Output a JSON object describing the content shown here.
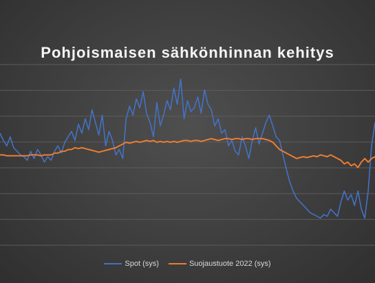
{
  "chart_data": {
    "type": "line",
    "title": "Pohjoismaisen sähkönhinnan kehitys",
    "xlabel": "",
    "ylabel": "",
    "grid": true,
    "legend_position": "bottom",
    "ylim": [
      0,
      100
    ],
    "x": [
      0,
      1,
      2,
      3,
      4,
      5,
      6,
      7,
      8,
      9,
      10,
      11,
      12,
      13,
      14,
      15,
      16,
      17,
      18,
      19,
      20,
      21,
      22,
      23,
      24,
      25,
      26,
      27,
      28,
      29,
      30,
      31,
      32,
      33,
      34,
      35,
      36,
      37,
      38,
      39,
      40,
      41,
      42,
      43,
      44,
      45,
      46,
      47,
      48,
      49,
      50,
      51,
      52,
      53,
      54,
      55,
      56,
      57,
      58,
      59,
      60,
      61,
      62,
      63,
      64,
      65,
      66,
      67,
      68,
      69,
      70,
      71,
      72,
      73,
      74,
      75,
      76,
      77,
      78,
      79,
      80,
      81,
      82,
      83,
      84,
      85,
      86,
      87,
      88,
      89,
      90,
      91,
      92,
      93,
      94,
      95,
      96,
      97,
      98,
      99,
      100,
      101,
      102,
      103,
      104,
      105,
      106,
      107,
      108,
      109,
      110
    ],
    "series": [
      {
        "name": "Spot (sys)",
        "color": "#4472c4",
        "values": [
          62,
          58,
          55,
          60,
          54,
          52,
          50,
          49,
          47,
          52,
          48,
          53,
          50,
          46,
          49,
          47,
          52,
          55,
          51,
          57,
          60,
          63,
          58,
          67,
          62,
          70,
          64,
          75,
          68,
          61,
          72,
          55,
          63,
          58,
          50,
          53,
          48,
          70,
          77,
          72,
          81,
          76,
          85,
          73,
          68,
          60,
          79,
          66,
          72,
          80,
          75,
          87,
          78,
          92,
          70,
          80,
          74,
          76,
          82,
          73,
          86,
          78,
          75,
          66,
          70,
          62,
          64,
          55,
          58,
          52,
          50,
          60,
          55,
          48,
          58,
          65,
          56,
          62,
          68,
          72,
          66,
          60,
          58,
          50,
          42,
          35,
          30,
          26,
          24,
          22,
          20,
          18,
          17,
          16,
          15,
          17,
          16,
          20,
          18,
          16,
          24,
          30,
          25,
          28,
          22,
          30,
          20,
          15,
          30,
          55,
          68
        ]
      },
      {
        "name": "Suojaustuote 2022 (sys)",
        "color": "#ed7d31",
        "values": [
          50,
          50,
          49.5,
          49.5,
          49.5,
          49.5,
          49.5,
          49.5,
          49.5,
          50,
          50,
          50,
          49.5,
          50,
          50,
          50,
          51,
          51,
          52,
          52,
          53,
          53,
          54,
          53.5,
          54,
          53.5,
          53,
          52.5,
          52,
          51.5,
          52,
          52.5,
          53,
          53.5,
          54,
          55,
          56,
          57,
          56.5,
          57,
          57.5,
          57,
          57.5,
          58,
          57.5,
          58,
          57,
          57.5,
          57,
          57.5,
          57,
          57.5,
          57,
          57.5,
          58,
          58,
          57.5,
          58,
          58,
          57.5,
          58,
          58.5,
          59,
          58.5,
          58,
          58.5,
          59,
          59,
          58.5,
          59,
          59,
          58.5,
          59,
          59,
          58.5,
          59,
          59,
          59,
          58.5,
          58,
          57,
          55,
          53,
          52,
          51,
          50,
          49,
          48,
          48.5,
          49,
          48.5,
          49,
          49.5,
          49,
          50,
          49.5,
          49,
          50,
          49,
          48,
          47,
          45,
          46,
          44,
          45,
          43,
          46,
          48,
          46,
          48,
          49
        ]
      }
    ]
  }
}
